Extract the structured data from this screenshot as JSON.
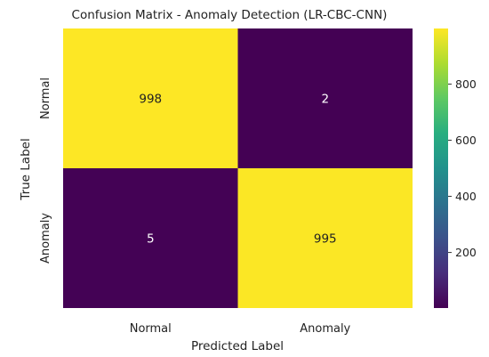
{
  "chart_data": {
    "type": "heatmap",
    "title": "Confusion Matrix - Anomaly Detection (LR-CBC-CNN)",
    "xlabel": "Predicted Label",
    "ylabel": "True Label",
    "x_categories": [
      "Normal",
      "Anomaly"
    ],
    "y_categories": [
      "Normal",
      "Anomaly"
    ],
    "values": [
      [
        998,
        2
      ],
      [
        5,
        995
      ]
    ],
    "colormap": "viridis",
    "colorbar": {
      "range": [
        2,
        998
      ],
      "ticks": [
        200,
        400,
        600,
        800
      ],
      "tick_labels": [
        "200",
        "400",
        "600",
        "800"
      ]
    },
    "annotation_colors": {
      "light": "#222222",
      "dark": "#ffffff"
    }
  }
}
